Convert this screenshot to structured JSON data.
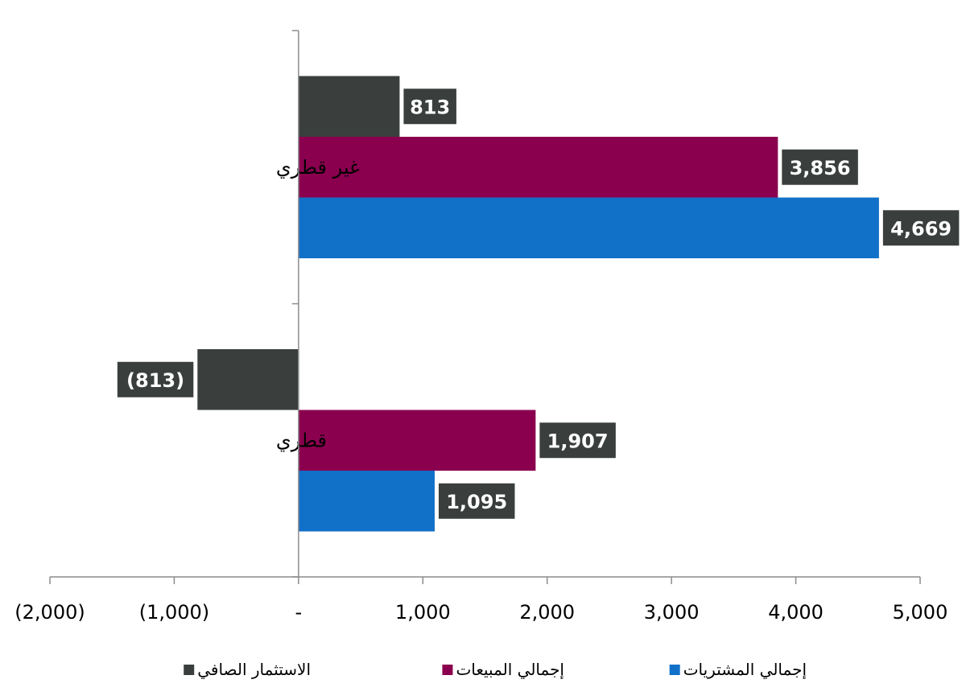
{
  "chart_data": {
    "type": "bar",
    "orientation": "horizontal",
    "categories": [
      "غير قطري",
      "قطري"
    ],
    "series": [
      {
        "name": "الاستثمار الصافي",
        "color": "#3a3f3e",
        "values": [
          813,
          -813
        ],
        "labels": [
          "813",
          "(813)"
        ]
      },
      {
        "name": "إجمالي المبيعات",
        "color": "#8a004f",
        "values": [
          3856,
          1907
        ],
        "labels": [
          "3,856",
          "1,907"
        ]
      },
      {
        "name": "إجمالي المشتريات",
        "color": "#1170c8",
        "values": [
          4669,
          1095
        ],
        "labels": [
          "4,669",
          "1,095"
        ]
      }
    ],
    "xlim": [
      -2000,
      5000
    ],
    "xticks": [
      -2000,
      -1000,
      0,
      1000,
      2000,
      3000,
      4000,
      5000
    ],
    "xtick_labels": [
      "(2,000)",
      "(1,000)",
      "-",
      "1,000",
      "2,000",
      "3,000",
      "4,000",
      "5,000"
    ],
    "data_label_bg": "#3a3f3e",
    "legend_position": "bottom",
    "grid": false,
    "title": "",
    "xlabel": "",
    "ylabel": ""
  }
}
